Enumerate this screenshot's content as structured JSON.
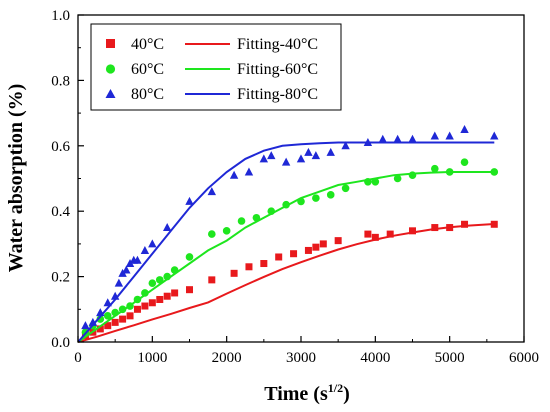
{
  "chart_data": {
    "type": "scatter",
    "xlabel_main": "Time (s",
    "xlabel_sup": "1/2",
    "xlabel_close": ")",
    "ylabel": "Water absorption (%)",
    "xlim": [
      0,
      6000
    ],
    "ylim": [
      0,
      1.0
    ],
    "x_ticks": [
      "0",
      "1000",
      "2000",
      "3000",
      "4000",
      "5000",
      "6000"
    ],
    "y_ticks": [
      "0.0",
      "0.2",
      "0.4",
      "0.6",
      "0.8",
      "1.0"
    ],
    "x_tick_values": [
      0,
      1000,
      2000,
      3000,
      4000,
      5000,
      6000
    ],
    "y_tick_values": [
      0,
      0.2,
      0.4,
      0.6,
      0.8,
      1.0
    ],
    "grid": false,
    "legend_position": "top-left",
    "series": [
      {
        "name": "40°C",
        "fit_name": "Fitting-40°C",
        "marker": "square",
        "color": "#e8191c",
        "points": [
          [
            100,
            0.02
          ],
          [
            200,
            0.03
          ],
          [
            300,
            0.04
          ],
          [
            400,
            0.05
          ],
          [
            500,
            0.06
          ],
          [
            600,
            0.07
          ],
          [
            700,
            0.08
          ],
          [
            800,
            0.1
          ],
          [
            900,
            0.11
          ],
          [
            1000,
            0.12
          ],
          [
            1100,
            0.13
          ],
          [
            1200,
            0.14
          ],
          [
            1300,
            0.15
          ],
          [
            1500,
            0.16
          ],
          [
            1800,
            0.19
          ],
          [
            2100,
            0.21
          ],
          [
            2300,
            0.23
          ],
          [
            2500,
            0.24
          ],
          [
            2700,
            0.26
          ],
          [
            2900,
            0.27
          ],
          [
            3100,
            0.28
          ],
          [
            3200,
            0.29
          ],
          [
            3300,
            0.3
          ],
          [
            3500,
            0.31
          ],
          [
            3900,
            0.33
          ],
          [
            4000,
            0.32
          ],
          [
            4200,
            0.33
          ],
          [
            4500,
            0.34
          ],
          [
            4800,
            0.35
          ],
          [
            5000,
            0.35
          ],
          [
            5200,
            0.36
          ],
          [
            5600,
            0.36
          ]
        ],
        "fit": {
          "x": [
            0,
            250,
            500,
            750,
            1000,
            1250,
            1500,
            1750,
            2000,
            2250,
            2500,
            2750,
            3000,
            3250,
            3500,
            3750,
            4000,
            4250,
            4500,
            4750,
            5000,
            5250,
            5600
          ],
          "y": [
            0.0,
            0.016,
            0.034,
            0.051,
            0.069,
            0.086,
            0.104,
            0.121,
            0.148,
            0.174,
            0.199,
            0.223,
            0.244,
            0.264,
            0.283,
            0.299,
            0.313,
            0.325,
            0.335,
            0.344,
            0.351,
            0.356,
            0.361
          ]
        }
      },
      {
        "name": "60°C",
        "fit_name": "Fitting-60°C",
        "marker": "circle",
        "color": "#1ee61e",
        "points": [
          [
            100,
            0.03
          ],
          [
            200,
            0.05
          ],
          [
            300,
            0.07
          ],
          [
            400,
            0.08
          ],
          [
            500,
            0.09
          ],
          [
            600,
            0.1
          ],
          [
            700,
            0.11
          ],
          [
            800,
            0.13
          ],
          [
            900,
            0.15
          ],
          [
            1000,
            0.18
          ],
          [
            1100,
            0.19
          ],
          [
            1200,
            0.2
          ],
          [
            1300,
            0.22
          ],
          [
            1500,
            0.26
          ],
          [
            1800,
            0.33
          ],
          [
            2000,
            0.34
          ],
          [
            2200,
            0.37
          ],
          [
            2400,
            0.38
          ],
          [
            2600,
            0.4
          ],
          [
            2800,
            0.42
          ],
          [
            3000,
            0.43
          ],
          [
            3200,
            0.44
          ],
          [
            3400,
            0.45
          ],
          [
            3600,
            0.47
          ],
          [
            3900,
            0.49
          ],
          [
            4000,
            0.49
          ],
          [
            4300,
            0.5
          ],
          [
            4500,
            0.51
          ],
          [
            4800,
            0.53
          ],
          [
            5000,
            0.52
          ],
          [
            5200,
            0.55
          ],
          [
            5600,
            0.52
          ]
        ],
        "fit": {
          "x": [
            0,
            250,
            500,
            750,
            1000,
            1250,
            1500,
            1750,
            2000,
            2250,
            2500,
            2750,
            3000,
            3250,
            3500,
            3750,
            4000,
            4250,
            4500,
            4750,
            5000,
            5250,
            5600
          ],
          "y": [
            0.0,
            0.04,
            0.08,
            0.12,
            0.16,
            0.2,
            0.24,
            0.28,
            0.31,
            0.35,
            0.38,
            0.41,
            0.44,
            0.46,
            0.48,
            0.49,
            0.5,
            0.51,
            0.515,
            0.518,
            0.52,
            0.52,
            0.52
          ]
        }
      },
      {
        "name": "80°C",
        "fit_name": "Fitting-80°C",
        "marker": "triangle",
        "color": "#1f28d6",
        "points": [
          [
            100,
            0.05
          ],
          [
            200,
            0.06
          ],
          [
            300,
            0.09
          ],
          [
            400,
            0.12
          ],
          [
            500,
            0.14
          ],
          [
            550,
            0.18
          ],
          [
            600,
            0.21
          ],
          [
            650,
            0.22
          ],
          [
            700,
            0.24
          ],
          [
            750,
            0.25
          ],
          [
            800,
            0.25
          ],
          [
            900,
            0.28
          ],
          [
            1000,
            0.3
          ],
          [
            1200,
            0.35
          ],
          [
            1500,
            0.43
          ],
          [
            1800,
            0.46
          ],
          [
            2100,
            0.51
          ],
          [
            2300,
            0.52
          ],
          [
            2500,
            0.56
          ],
          [
            2600,
            0.57
          ],
          [
            2800,
            0.55
          ],
          [
            3000,
            0.56
          ],
          [
            3100,
            0.58
          ],
          [
            3200,
            0.57
          ],
          [
            3400,
            0.58
          ],
          [
            3600,
            0.6
          ],
          [
            3900,
            0.61
          ],
          [
            4100,
            0.62
          ],
          [
            4300,
            0.62
          ],
          [
            4500,
            0.62
          ],
          [
            4800,
            0.63
          ],
          [
            5000,
            0.63
          ],
          [
            5200,
            0.65
          ],
          [
            5600,
            0.63
          ]
        ],
        "fit": {
          "x": [
            0,
            250,
            500,
            750,
            1000,
            1250,
            1500,
            1750,
            2000,
            2250,
            2500,
            2750,
            3000,
            3250,
            3500,
            3750,
            4000,
            4250,
            4500,
            4750,
            5000,
            5250,
            5600
          ],
          "y": [
            0.0,
            0.065,
            0.13,
            0.2,
            0.27,
            0.34,
            0.41,
            0.47,
            0.52,
            0.56,
            0.585,
            0.6,
            0.605,
            0.608,
            0.61,
            0.61,
            0.61,
            0.61,
            0.61,
            0.61,
            0.61,
            0.61,
            0.61
          ]
        }
      }
    ]
  }
}
